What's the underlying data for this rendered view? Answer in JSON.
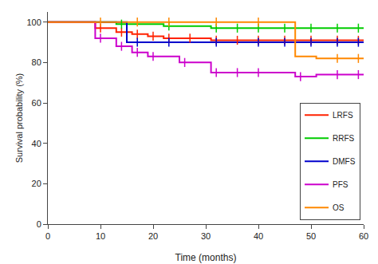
{
  "chart_data": {
    "type": "line",
    "xlabel": "Time (months)",
    "ylabel": "Survival probability (%)",
    "xlim": [
      0,
      60
    ],
    "ylim": [
      0,
      105
    ],
    "xticks": [
      0,
      10,
      20,
      30,
      40,
      50,
      60
    ],
    "yticks": [
      0,
      20,
      40,
      60,
      80,
      100
    ],
    "grid": false,
    "legend": "lower right",
    "series": [
      {
        "name": "LRFS",
        "color": "#FF2200",
        "x": [
          0,
          9,
          9,
          13,
          13,
          16,
          16,
          19,
          19,
          22,
          22,
          31,
          31,
          60
        ],
        "values": [
          100,
          100,
          97,
          97,
          95,
          95,
          94,
          94,
          93,
          93,
          92,
          92,
          91,
          91
        ],
        "censors": {
          "x": [
            10,
            14,
            17,
            20,
            23,
            27,
            32,
            36,
            40,
            45,
            50,
            55,
            59
          ],
          "y": [
            97,
            95,
            94,
            93,
            92,
            92,
            91,
            91,
            91,
            91,
            91,
            91,
            91
          ]
        }
      },
      {
        "name": "RRFS",
        "color": "#00CC00",
        "x": [
          0,
          13,
          13,
          22,
          22,
          31,
          31,
          60
        ],
        "values": [
          100,
          100,
          99,
          99,
          98,
          98,
          97,
          97
        ],
        "censors": {
          "x": [
            14,
            23,
            32,
            36,
            40,
            45,
            50,
            55,
            59
          ],
          "y": [
            99,
            98,
            97,
            97,
            97,
            97,
            97,
            97,
            97
          ]
        }
      },
      {
        "name": "DMFS",
        "color": "#0000CC",
        "x": [
          0,
          15,
          15,
          60
        ],
        "values": [
          100,
          100,
          90,
          90
        ],
        "censors": {
          "x": [
            17,
            23,
            32,
            40,
            45,
            50,
            55,
            59
          ],
          "y": [
            90,
            90,
            90,
            90,
            90,
            90,
            90,
            90
          ]
        }
      },
      {
        "name": "PFS",
        "color": "#CC00CC",
        "x": [
          0,
          9,
          9,
          13,
          13,
          16,
          16,
          19,
          19,
          25,
          25,
          31,
          31,
          47,
          47,
          51,
          51,
          60
        ],
        "values": [
          100,
          100,
          92,
          92,
          88,
          88,
          85,
          85,
          83,
          83,
          80,
          80,
          75,
          75,
          73,
          73,
          74,
          74
        ],
        "censors": {
          "x": [
            10,
            14,
            17,
            20,
            26,
            32,
            36,
            40,
            48,
            55,
            59
          ],
          "y": [
            92,
            88,
            85,
            83,
            80,
            75,
            75,
            75,
            73,
            74,
            74
          ]
        }
      },
      {
        "name": "OS",
        "color": "#FF8800",
        "x": [
          0,
          47,
          47,
          51,
          51,
          60
        ],
        "values": [
          100,
          100,
          83,
          83,
          82,
          82
        ],
        "censors": {
          "x": [
            10,
            17,
            23,
            32,
            40,
            55,
            59
          ],
          "y": [
            100,
            100,
            100,
            100,
            100,
            82,
            82
          ]
        }
      }
    ]
  }
}
